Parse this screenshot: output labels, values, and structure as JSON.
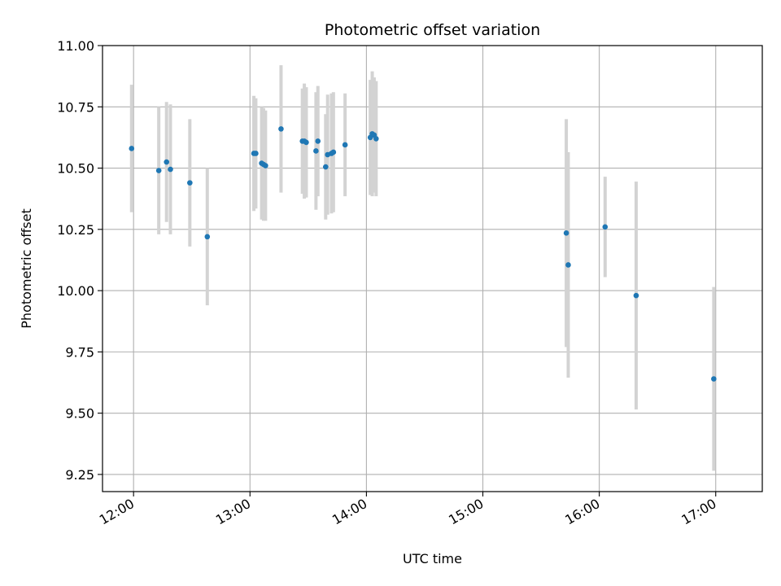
{
  "chart_data": {
    "type": "scatter",
    "title": "Photometric offset variation",
    "xlabel": "UTC time",
    "ylabel": "Photometric offset",
    "x_ticks": [
      "12:00",
      "13:00",
      "14:00",
      "15:00",
      "16:00",
      "17:00"
    ],
    "y_ticks": [
      "9.25",
      "9.50",
      "9.75",
      "10.00",
      "10.25",
      "10.50",
      "10.75",
      "11.00"
    ],
    "xlim": [
      "11:44",
      "17:24"
    ],
    "ylim": [
      9.18,
      11.0
    ],
    "grid": true,
    "colors": {
      "marker": "#1f77b4",
      "errorbar": "#d3d3d3",
      "grid": "#b0b0b0"
    },
    "points": [
      {
        "t": "11:59",
        "y": 10.58,
        "err": 0.26
      },
      {
        "t": "12:13",
        "y": 10.49,
        "err": 0.26
      },
      {
        "t": "12:17",
        "y": 10.525,
        "err": 0.245
      },
      {
        "t": "12:19",
        "y": 10.495,
        "err": 0.265
      },
      {
        "t": "12:29",
        "y": 10.44,
        "err": 0.26
      },
      {
        "t": "12:38",
        "y": 10.22,
        "err": 0.28
      },
      {
        "t": "13:02",
        "y": 10.56,
        "err": 0.235
      },
      {
        "t": "13:03",
        "y": 10.56,
        "err": 0.225
      },
      {
        "t": "13:06",
        "y": 10.52,
        "err": 0.23
      },
      {
        "t": "13:07",
        "y": 10.515,
        "err": 0.23
      },
      {
        "t": "13:08",
        "y": 10.51,
        "err": 0.225
      },
      {
        "t": "13:16",
        "y": 10.66,
        "err": 0.26
      },
      {
        "t": "13:27",
        "y": 10.61,
        "err": 0.215
      },
      {
        "t": "13:28",
        "y": 10.61,
        "err": 0.235
      },
      {
        "t": "13:29",
        "y": 10.605,
        "err": 0.225
      },
      {
        "t": "13:34",
        "y": 10.57,
        "err": 0.24
      },
      {
        "t": "13:35",
        "y": 10.61,
        "err": 0.225
      },
      {
        "t": "13:39",
        "y": 10.505,
        "err": 0.215
      },
      {
        "t": "13:40",
        "y": 10.555,
        "err": 0.245
      },
      {
        "t": "13:42",
        "y": 10.56,
        "err": 0.245
      },
      {
        "t": "13:43",
        "y": 10.565,
        "err": 0.245
      },
      {
        "t": "13:49",
        "y": 10.595,
        "err": 0.21
      },
      {
        "t": "14:02",
        "y": 10.625,
        "err": 0.235
      },
      {
        "t": "14:03",
        "y": 10.64,
        "err": 0.255
      },
      {
        "t": "14:04",
        "y": 10.635,
        "err": 0.235
      },
      {
        "t": "14:05",
        "y": 10.62,
        "err": 0.235
      },
      {
        "t": "15:43",
        "y": 10.235,
        "err": 0.465
      },
      {
        "t": "15:44",
        "y": 10.105,
        "err": 0.46
      },
      {
        "t": "16:03",
        "y": 10.26,
        "err": 0.205
      },
      {
        "t": "16:19",
        "y": 9.98,
        "err": 0.465
      },
      {
        "t": "16:59",
        "y": 9.64,
        "err": 0.375
      }
    ]
  }
}
